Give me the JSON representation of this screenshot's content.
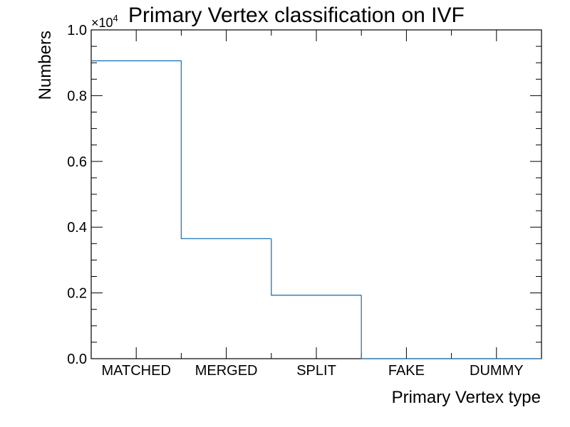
{
  "chart_data": {
    "type": "bar",
    "style": "step-histogram",
    "title": "Primary Vertex classification on IVF",
    "xlabel": "Primary Vertex type",
    "ylabel": "Numbers",
    "categories": [
      "MATCHED",
      "MERGED",
      "SPLIT",
      "FAKE",
      "DUMMY"
    ],
    "values": [
      9060,
      3650,
      1930,
      0,
      0
    ],
    "ylim": [
      0,
      10000
    ],
    "y_scale_label": "×10",
    "y_scale_exponent": "4",
    "y_ticks": [
      "0.0",
      "0.2",
      "0.4",
      "0.6",
      "0.8",
      "1.0"
    ],
    "y_tick_values": [
      0,
      2000,
      4000,
      6000,
      8000,
      10000
    ],
    "grid": false,
    "line_color": "#1f77b4"
  }
}
